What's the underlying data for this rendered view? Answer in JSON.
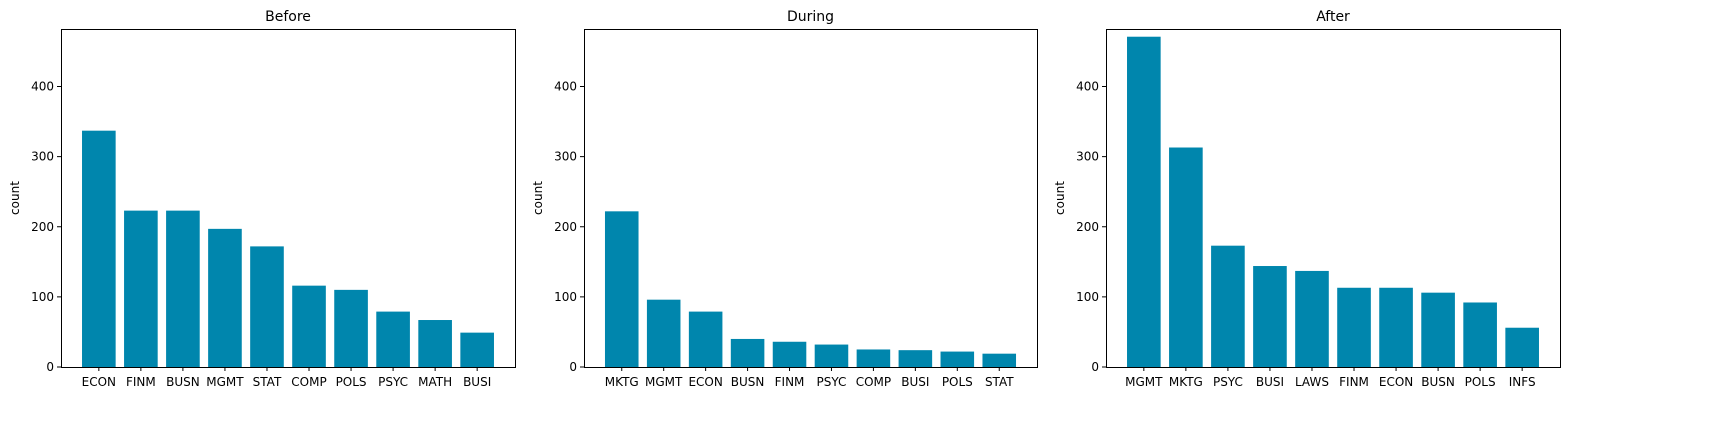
{
  "colors": {
    "bar": "#0086ad",
    "axis": "#000000",
    "background": "#ffffff"
  },
  "chart_data": [
    {
      "type": "bar",
      "title": "Before",
      "xlabel": "",
      "ylabel": "count",
      "ylim": [
        0,
        482
      ],
      "yticks": [
        0,
        100,
        200,
        300,
        400
      ],
      "grid": false,
      "categories": [
        "ECON",
        "FINM",
        "BUSN",
        "MGMT",
        "STAT",
        "COMP",
        "POLS",
        "PSYC",
        "MATH",
        "BUSI"
      ],
      "values": [
        337,
        223,
        223,
        197,
        172,
        116,
        110,
        79,
        67,
        49
      ]
    },
    {
      "type": "bar",
      "title": "During",
      "xlabel": "",
      "ylabel": "count",
      "ylim": [
        0,
        482
      ],
      "yticks": [
        0,
        100,
        200,
        300,
        400
      ],
      "grid": false,
      "categories": [
        "MKTG",
        "MGMT",
        "ECON",
        "BUSN",
        "FINM",
        "PSYC",
        "COMP",
        "BUSI",
        "POLS",
        "STAT"
      ],
      "values": [
        222,
        96,
        79,
        40,
        36,
        32,
        25,
        24,
        22,
        19
      ]
    },
    {
      "type": "bar",
      "title": "After",
      "xlabel": "",
      "ylabel": "count",
      "ylim": [
        0,
        482
      ],
      "yticks": [
        0,
        100,
        200,
        300,
        400
      ],
      "grid": false,
      "categories": [
        "MGMT",
        "MKTG",
        "PSYC",
        "BUSI",
        "LAWS",
        "FINM",
        "ECON",
        "BUSN",
        "POLS",
        "INFS"
      ],
      "values": [
        471,
        313,
        173,
        144,
        137,
        113,
        113,
        106,
        92,
        56
      ]
    }
  ]
}
